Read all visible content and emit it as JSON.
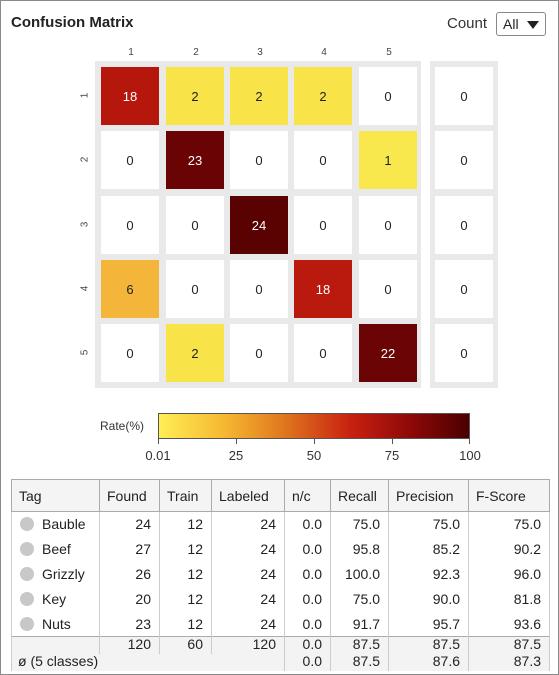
{
  "header": {
    "title": "Confusion Matrix",
    "count_label": "Count",
    "select_value": "All"
  },
  "matrix": {
    "col_labels": [
      "1",
      "2",
      "3",
      "4",
      "5"
    ],
    "row_labels": [
      "1",
      "2",
      "3",
      "4",
      "5"
    ],
    "rows": [
      [
        18,
        2,
        2,
        2,
        0
      ],
      [
        0,
        23,
        0,
        0,
        1
      ],
      [
        0,
        0,
        24,
        0,
        0
      ],
      [
        6,
        0,
        0,
        18,
        0
      ],
      [
        0,
        2,
        0,
        0,
        22
      ]
    ],
    "side_values": [
      0,
      0,
      0,
      0,
      0
    ],
    "cell_colors": [
      [
        "#b5170d",
        "#f8e348",
        "#f8e348",
        "#f8e348",
        "#ffffff"
      ],
      [
        "#ffffff",
        "#6a0303",
        "#ffffff",
        "#ffffff",
        "#f8e84e"
      ],
      [
        "#ffffff",
        "#ffffff",
        "#5a0101",
        "#ffffff",
        "#ffffff"
      ],
      [
        "#f3b53a",
        "#ffffff",
        "#ffffff",
        "#ba1a0d",
        "#ffffff"
      ],
      [
        "#ffffff",
        "#f8e348",
        "#ffffff",
        "#ffffff",
        "#6b0404"
      ]
    ],
    "cell_text_colors": [
      [
        "#ffffff",
        "#222222",
        "#222222",
        "#222222",
        "#222222"
      ],
      [
        "#222222",
        "#ffffff",
        "#222222",
        "#222222",
        "#222222"
      ],
      [
        "#222222",
        "#222222",
        "#ffffff",
        "#222222",
        "#222222"
      ],
      [
        "#222222",
        "#222222",
        "#222222",
        "#ffffff",
        "#222222"
      ],
      [
        "#222222",
        "#222222",
        "#222222",
        "#222222",
        "#ffffff"
      ]
    ]
  },
  "scale": {
    "label": "Rate(%)",
    "ticks": [
      "0.01",
      "25",
      "50",
      "75",
      "100"
    ]
  },
  "table": {
    "headers": [
      "Tag",
      "Found",
      "Train",
      "Labeled",
      "n/c",
      "Recall",
      "Precision",
      "F-Score"
    ],
    "rows": [
      {
        "tag": "Bauble",
        "found": "24",
        "train": "12",
        "labeled": "24",
        "nc": "0.0",
        "recall": "75.0",
        "precision": "75.0",
        "fscore": "75.0"
      },
      {
        "tag": "Beef",
        "found": "27",
        "train": "12",
        "labeled": "24",
        "nc": "0.0",
        "recall": "95.8",
        "precision": "85.2",
        "fscore": "90.2"
      },
      {
        "tag": "Grizzly",
        "found": "26",
        "train": "12",
        "labeled": "24",
        "nc": "0.0",
        "recall": "100.0",
        "precision": "92.3",
        "fscore": "96.0"
      },
      {
        "tag": "Key",
        "found": "20",
        "train": "12",
        "labeled": "24",
        "nc": "0.0",
        "recall": "75.0",
        "precision": "90.0",
        "fscore": "81.8"
      },
      {
        "tag": "Nuts",
        "found": "23",
        "train": "12",
        "labeled": "24",
        "nc": "0.0",
        "recall": "91.7",
        "precision": "95.7",
        "fscore": "93.6"
      }
    ],
    "totals": {
      "found": "120",
      "train": "60",
      "labeled": "120",
      "nc": "0.0",
      "recall": "87.5",
      "precision": "87.5",
      "fscore": "87.5"
    },
    "average": {
      "label": "ø (5 classes)",
      "nc": "0.0",
      "recall": "87.5",
      "precision": "87.6",
      "fscore": "87.3"
    }
  }
}
